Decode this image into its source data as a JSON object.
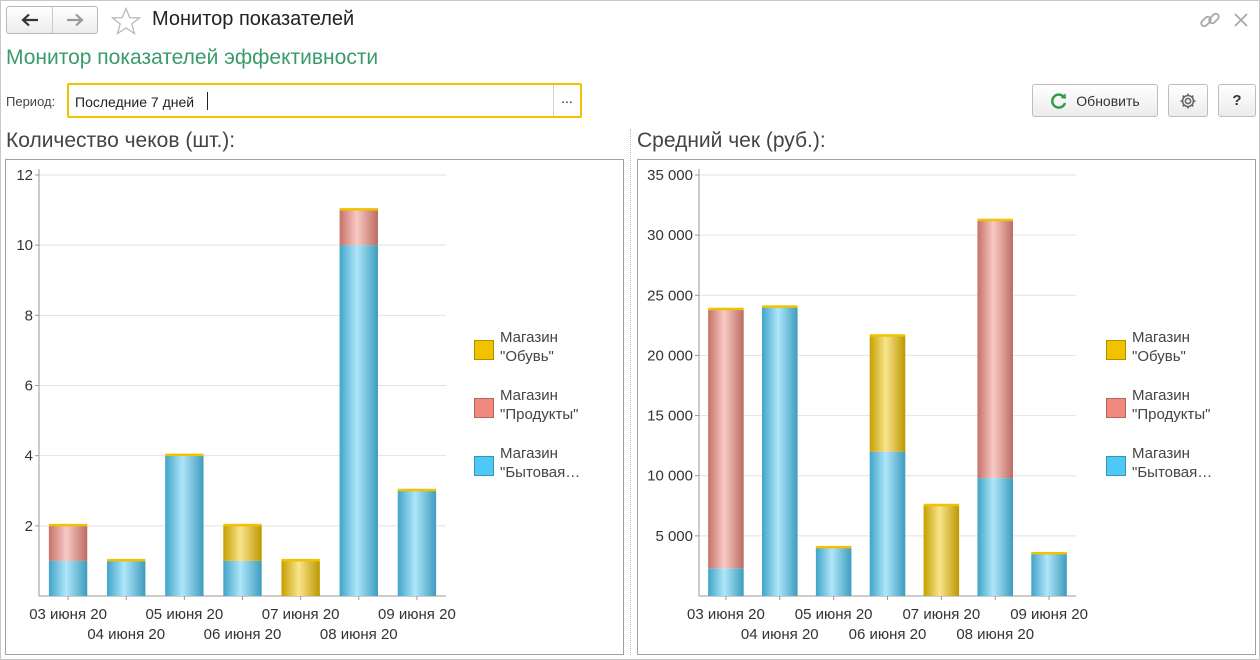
{
  "window": {
    "title": "Монитор показателей"
  },
  "form": {
    "title": "Монитор показателей эффективности"
  },
  "period": {
    "label": "Период:",
    "value": "Последние 7 дней",
    "select_label": "..."
  },
  "toolbar": {
    "refresh_label": "Обновить",
    "help_label": "?"
  },
  "colors": {
    "obuv": "#f2c200",
    "produkty": "#f08a7e",
    "bytovaya": "#4ec8f4",
    "accent": "#3a9b6a"
  },
  "legend": [
    {
      "label": "Магазин\n\"Обувь\"",
      "color": "#f2c200"
    },
    {
      "label": "Магазин\n\"Продукты\"",
      "color": "#f08a7e"
    },
    {
      "label": "Магазин\n\"Бытовая…",
      "color": "#4ec8f4"
    }
  ],
  "chart_data": [
    {
      "type": "bar",
      "stacked": true,
      "title": "Количество чеков (шт.):",
      "categories": [
        "03 июня 20",
        "04 июня 20",
        "05 июня 20",
        "06 июня 20",
        "07 июня 20",
        "08 июня 20",
        "09 июня 20"
      ],
      "series": [
        {
          "name": "Магазин \"Бытовая…",
          "values": [
            1,
            1,
            4,
            1,
            0,
            10,
            3
          ]
        },
        {
          "name": "Магазин \"Продукты\"",
          "values": [
            1,
            0,
            0,
            0,
            0,
            1,
            0
          ]
        },
        {
          "name": "Магазин \"Обувь\"",
          "values": [
            0,
            0,
            0,
            1,
            1,
            0,
            0
          ]
        }
      ],
      "ylim": [
        0,
        12
      ],
      "yticks": [
        "12",
        "10",
        "8",
        "6",
        "4",
        "2"
      ],
      "grid": true,
      "legend_position": "right"
    },
    {
      "type": "bar",
      "stacked": true,
      "title": "Средний чек (руб.):",
      "categories": [
        "03 июня 20",
        "04 июня 20",
        "05 июня 20",
        "06 июня 20",
        "07 июня 20",
        "08 июня 20",
        "09 июня 20"
      ],
      "series": [
        {
          "name": "Магазин \"Бытовая…",
          "values": [
            2300,
            24000,
            4000,
            12000,
            0,
            9800,
            3500
          ]
        },
        {
          "name": "Магазин \"Продукты\"",
          "values": [
            21500,
            0,
            0,
            0,
            0,
            21400,
            0
          ]
        },
        {
          "name": "Магазин \"Обувь\"",
          "values": [
            0,
            0,
            0,
            9600,
            7500,
            0,
            0
          ]
        }
      ],
      "ylim": [
        0,
        35000
      ],
      "yticks": [
        "35 000",
        "30 000",
        "25 000",
        "20 000",
        "15 000",
        "10 000",
        "5 000"
      ],
      "grid": true,
      "legend_position": "right"
    }
  ]
}
